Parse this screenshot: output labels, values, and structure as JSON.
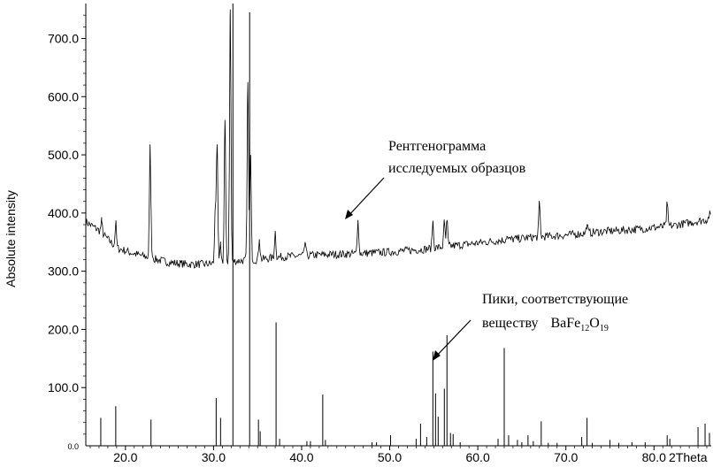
{
  "chart_data": {
    "type": "line",
    "xlabel": "2Theta",
    "ylabel": "Absolute intensity",
    "xlim": [
      15.5,
      86.5
    ],
    "ylim": [
      0,
      760
    ],
    "x_ticks": [
      "20.0",
      "30.0",
      "40.0",
      "50.0",
      "60.0",
      "70.0",
      "80.0"
    ],
    "x_tick_values": [
      20,
      30,
      40,
      50,
      60,
      70,
      80
    ],
    "y_ticks": [
      "100.0",
      "200.0",
      "300.0",
      "400.0",
      "500.0",
      "600.0",
      "700.0"
    ],
    "y_tick_values": [
      100,
      200,
      300,
      400,
      500,
      600,
      700
    ],
    "y_zero_label": "0.0",
    "grid": false,
    "series": [
      {
        "name": "Рентгенограмма исследуемых образцов",
        "kind": "pattern",
        "baseline": [
          [
            15.5,
            385
          ],
          [
            17,
            370
          ],
          [
            19,
            340
          ],
          [
            21,
            330
          ],
          [
            23,
            322
          ],
          [
            25,
            315
          ],
          [
            27,
            312
          ],
          [
            29,
            312
          ],
          [
            31,
            315
          ],
          [
            33,
            318
          ],
          [
            35,
            320
          ],
          [
            38,
            325
          ],
          [
            42,
            328
          ],
          [
            46,
            330
          ],
          [
            50,
            333
          ],
          [
            54,
            338
          ],
          [
            58,
            345
          ],
          [
            62,
            352
          ],
          [
            66,
            358
          ],
          [
            70,
            362
          ],
          [
            74,
            368
          ],
          [
            78,
            372
          ],
          [
            82,
            378
          ],
          [
            86.5,
            390
          ]
        ],
        "peaks": [
          [
            17.3,
            387
          ],
          [
            18.9,
            383
          ],
          [
            22.8,
            514
          ],
          [
            23.0,
            335
          ],
          [
            30.2,
            410
          ],
          [
            30.4,
            518
          ],
          [
            30.8,
            345
          ],
          [
            31.3,
            560
          ],
          [
            31.9,
            750
          ],
          [
            33.9,
            625
          ],
          [
            34.2,
            500
          ],
          [
            35.2,
            355
          ],
          [
            37.0,
            368
          ],
          [
            40.4,
            350
          ],
          [
            46.4,
            388
          ],
          [
            54.9,
            385
          ],
          [
            56.2,
            385
          ],
          [
            56.5,
            387
          ],
          [
            63.3,
            360
          ],
          [
            67.0,
            418
          ],
          [
            72.4,
            380
          ],
          [
            81.5,
            416
          ],
          [
            86.3,
            398
          ]
        ]
      },
      {
        "name": "Пики, соответствующие веществу BaFe12O19",
        "kind": "sticks",
        "sticks": [
          [
            17.2,
            48
          ],
          [
            18.9,
            68
          ],
          [
            22.9,
            45
          ],
          [
            30.3,
            82
          ],
          [
            30.8,
            48
          ],
          [
            32.2,
            760
          ],
          [
            34.1,
            745
          ],
          [
            35.1,
            45
          ],
          [
            35.3,
            25
          ],
          [
            37.1,
            212
          ],
          [
            37.5,
            12
          ],
          [
            40.6,
            8
          ],
          [
            41.0,
            8
          ],
          [
            42.4,
            88
          ],
          [
            42.7,
            10
          ],
          [
            48.0,
            6
          ],
          [
            48.5,
            6
          ],
          [
            50.1,
            18
          ],
          [
            53.0,
            12
          ],
          [
            53.5,
            38
          ],
          [
            54.2,
            15
          ],
          [
            54.9,
            162
          ],
          [
            55.2,
            90
          ],
          [
            55.5,
            50
          ],
          [
            56.2,
            98
          ],
          [
            56.5,
            190
          ],
          [
            56.9,
            22
          ],
          [
            57.2,
            20
          ],
          [
            58.0,
            6
          ],
          [
            62.3,
            12
          ],
          [
            63.0,
            168
          ],
          [
            63.5,
            18
          ],
          [
            64.5,
            10
          ],
          [
            65.0,
            6
          ],
          [
            65.7,
            18
          ],
          [
            66.3,
            8
          ],
          [
            67.2,
            42
          ],
          [
            68.0,
            5
          ],
          [
            69.0,
            5
          ],
          [
            71.8,
            15
          ],
          [
            72.4,
            48
          ],
          [
            73.0,
            5
          ],
          [
            75.0,
            10
          ],
          [
            76.0,
            5
          ],
          [
            77.5,
            6
          ],
          [
            79.0,
            6
          ],
          [
            81.5,
            18
          ],
          [
            81.8,
            12
          ],
          [
            85.0,
            32
          ],
          [
            85.8,
            38
          ],
          [
            86.3,
            22
          ]
        ]
      }
    ],
    "annotations": [
      {
        "lines": [
          "Рентгенограмма",
          "исследуемых образцов"
        ],
        "points_to": [
          46.8,
          385
        ]
      },
      {
        "lines": [
          "Пики, соответствующие",
          "веществу"
        ],
        "formula": {
          "base1": "BaFe",
          "sub1": "12",
          "base2": "O",
          "sub2": "19"
        },
        "points_to": [
          57.2,
          145
        ]
      }
    ]
  }
}
